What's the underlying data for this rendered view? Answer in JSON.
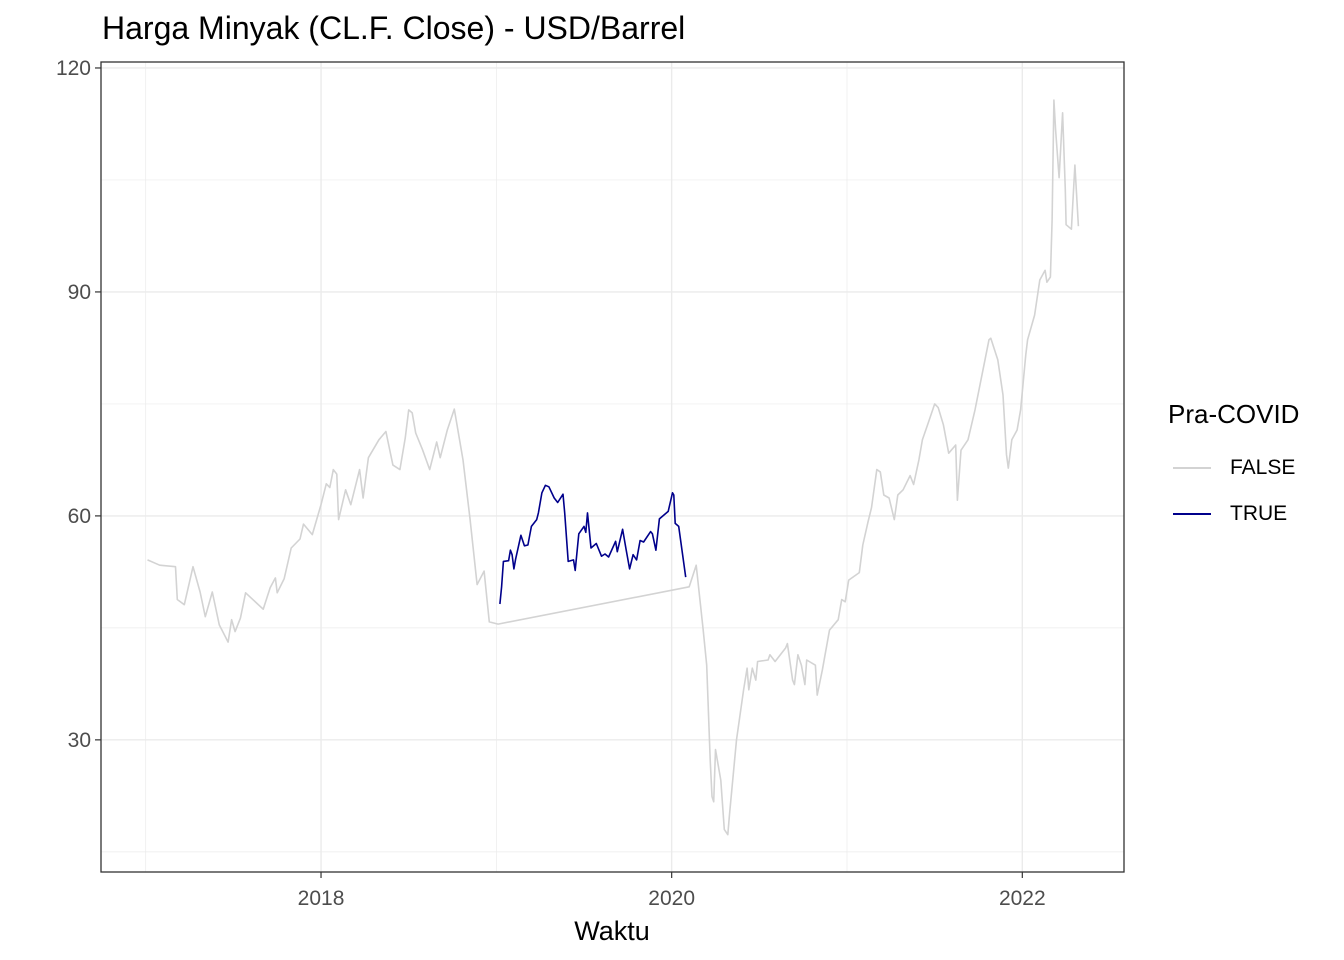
{
  "chart_data": {
    "type": "line",
    "title": "Harga Minyak (CL.F. Close) - USD/Barrel",
    "xlabel": "Waktu",
    "ylabel": "",
    "xlim": [
      2016.745,
      2022.58
    ],
    "ylim": [
      12.3,
      120.8
    ],
    "x_ticks": [
      2018,
      2020,
      2022
    ],
    "x_tick_labels": [
      "2018",
      "2020",
      "2022"
    ],
    "y_ticks": [
      30,
      60,
      90,
      120
    ],
    "y_tick_labels": [
      "30",
      "60",
      "90",
      "120"
    ],
    "grid": true,
    "legend": {
      "title": "Pra-COVID",
      "position": "right"
    },
    "series": [
      {
        "name": "FALSE",
        "color": "#d3d3d3",
        "x": [
          2017.01,
          2017.08,
          2017.17,
          2017.18,
          2017.22,
          2017.27,
          2017.31,
          2017.34,
          2017.38,
          2017.42,
          2017.47,
          2017.49,
          2017.51,
          2017.54,
          2017.57,
          2017.67,
          2017.71,
          2017.74,
          2017.75,
          2017.79,
          2017.83,
          2017.88,
          2017.9,
          2017.95,
          2018.0,
          2018.03,
          2018.05,
          2018.07,
          2018.09,
          2018.1,
          2018.14,
          2018.17,
          2018.22,
          2018.24,
          2018.27,
          2018.33,
          2018.37,
          2018.41,
          2018.45,
          2018.48,
          2018.5,
          2018.52,
          2018.54,
          2018.58,
          2018.62,
          2018.66,
          2018.68,
          2018.72,
          2018.76,
          2018.81,
          2018.85,
          2018.89,
          2018.93,
          2018.96,
          2019.01,
          2020.1,
          2020.14,
          2020.18,
          2020.2,
          2020.22,
          2020.23,
          2020.24,
          2020.25,
          2020.28,
          2020.3,
          2020.32,
          2020.33,
          2020.37,
          2020.41,
          2020.43,
          2020.44,
          2020.46,
          2020.48,
          2020.49,
          2020.55,
          2020.56,
          2020.59,
          2020.65,
          2020.66,
          2020.69,
          2020.7,
          2020.72,
          2020.74,
          2020.76,
          2020.77,
          2020.82,
          2020.83,
          2020.86,
          2020.9,
          2020.95,
          2020.97,
          2020.99,
          2021.01,
          2021.07,
          2021.09,
          2021.12,
          2021.14,
          2021.17,
          2021.19,
          2021.21,
          2021.24,
          2021.27,
          2021.29,
          2021.32,
          2021.36,
          2021.38,
          2021.41,
          2021.43,
          2021.46,
          2021.5,
          2021.52,
          2021.55,
          2021.58,
          2021.62,
          2021.63,
          2021.65,
          2021.69,
          2021.73,
          2021.77,
          2021.81,
          2021.82,
          2021.86,
          2021.89,
          2021.91,
          2021.92,
          2021.94,
          2021.97,
          2021.99,
          2022.02,
          2022.03,
          2022.07,
          2022.1,
          2022.13,
          2022.14,
          2022.16,
          2022.17,
          2022.18,
          2022.19,
          2022.21,
          2022.23,
          2022.245,
          2022.25,
          2022.28,
          2022.3,
          2022.32
        ],
        "y": [
          54.1,
          53.4,
          53.2,
          48.8,
          48.1,
          53.2,
          49.8,
          46.5,
          49.8,
          45.4,
          43.1,
          46.1,
          44.5,
          46.3,
          49.7,
          47.5,
          50.4,
          51.7,
          49.7,
          51.6,
          55.7,
          56.9,
          58.9,
          57.5,
          61.5,
          64.3,
          63.8,
          66.2,
          65.6,
          59.5,
          63.5,
          61.5,
          66.2,
          62.4,
          67.8,
          70.2,
          71.3,
          66.8,
          66.2,
          70.4,
          74.2,
          73.8,
          71.1,
          68.8,
          66.2,
          69.9,
          67.8,
          71.5,
          74.3,
          67.5,
          59.5,
          50.8,
          52.6,
          45.8,
          45.5,
          50.5,
          53.4,
          44.7,
          40.0,
          27.3,
          22.4,
          21.7,
          28.7,
          24.6,
          18.0,
          17.3,
          20.0,
          30.0,
          36.7,
          39.6,
          36.7,
          39.6,
          38.0,
          40.5,
          40.7,
          41.4,
          40.5,
          42.3,
          42.9,
          38.0,
          37.4,
          41.4,
          40.0,
          37.4,
          40.7,
          40.0,
          36.0,
          39.4,
          44.7,
          46.1,
          48.8,
          48.5,
          51.4,
          52.4,
          56.1,
          59.2,
          61.1,
          66.2,
          65.9,
          62.8,
          62.4,
          59.5,
          62.8,
          63.5,
          65.4,
          64.2,
          67.5,
          70.2,
          72.2,
          75.0,
          74.5,
          72.2,
          68.4,
          69.5,
          62.1,
          68.8,
          70.2,
          74.2,
          78.9,
          83.6,
          83.8,
          80.9,
          76.2,
          68.2,
          66.4,
          70.2,
          71.5,
          74.2,
          81.6,
          83.6,
          86.9,
          91.6,
          92.9,
          91.3,
          92.0,
          99.6,
          115.7,
          111.7,
          105.3,
          114.0,
          103.7,
          99.0,
          98.4,
          107.0,
          98.8
        ]
      },
      {
        "name": "TRUE",
        "color": "#00008b",
        "x": [
          2019.02,
          2019.03,
          2019.04,
          2019.07,
          2019.08,
          2019.09,
          2019.1,
          2019.11,
          2019.14,
          2019.16,
          2019.18,
          2019.2,
          2019.23,
          2019.24,
          2019.26,
          2019.28,
          2019.3,
          2019.33,
          2019.35,
          2019.38,
          2019.39,
          2019.41,
          2019.44,
          2019.45,
          2019.47,
          2019.5,
          2019.51,
          2019.52,
          2019.54,
          2019.57,
          2019.6,
          2019.62,
          2019.64,
          2019.68,
          2019.69,
          2019.72,
          2019.74,
          2019.76,
          2019.78,
          2019.8,
          2019.82,
          2019.84,
          2019.88,
          2019.89,
          2019.91,
          2019.93,
          2019.98,
          2020.005,
          2020.012,
          2020.02,
          2020.04,
          2020.08
        ],
        "y": [
          48.2,
          50.5,
          53.9,
          54.0,
          55.4,
          54.8,
          52.9,
          54.2,
          57.4,
          56.0,
          56.1,
          58.6,
          59.5,
          60.4,
          63.1,
          64.1,
          63.9,
          62.4,
          61.8,
          62.9,
          60.4,
          53.9,
          54.1,
          52.7,
          57.6,
          58.6,
          57.8,
          60.4,
          55.7,
          56.3,
          54.6,
          54.9,
          54.5,
          56.6,
          55.2,
          58.2,
          55.5,
          52.9,
          54.8,
          54.1,
          56.7,
          56.5,
          57.9,
          57.6,
          55.4,
          59.6,
          60.6,
          63.1,
          62.8,
          59.0,
          58.6,
          51.8
        ]
      }
    ]
  }
}
